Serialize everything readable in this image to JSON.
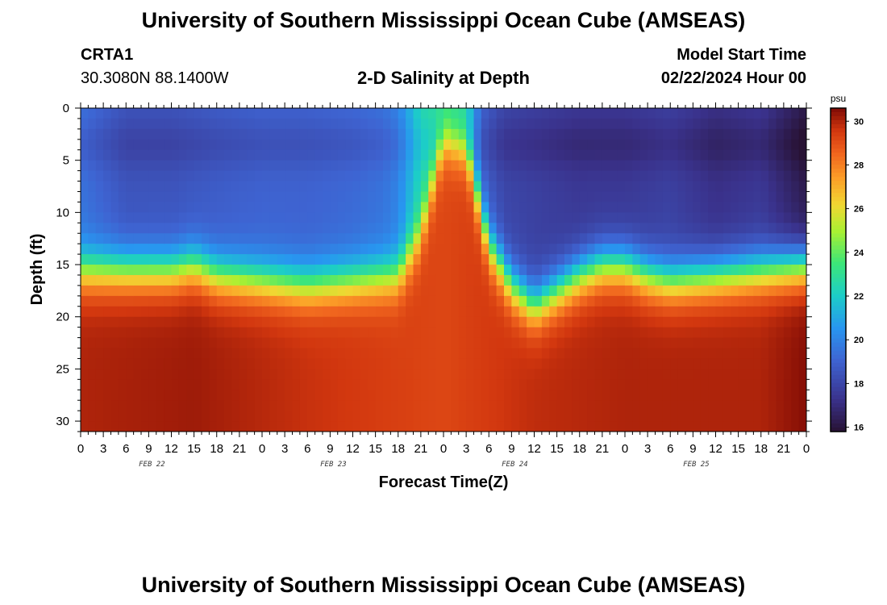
{
  "header": {
    "title": "University of Southern Mississippi Ocean Cube (AMSEAS)",
    "station_id": "CRTA1",
    "station_coords": "30.3080N  88.1400W",
    "subtitle": "2-D Salinity at Depth",
    "start_label": "Model Start Time",
    "start_value": "02/22/2024 Hour 00"
  },
  "footer": {
    "title": "University of Southern Mississippi Ocean Cube (AMSEAS)"
  },
  "chart_data": {
    "type": "heatmap",
    "title": "2-D Salinity at Depth",
    "xlabel": "Forecast Time(Z)",
    "ylabel": "Depth (ft)",
    "x_ticks": [
      "0",
      "3",
      "6",
      "9",
      "12",
      "15",
      "18",
      "21",
      "0",
      "3",
      "6",
      "9",
      "12",
      "15",
      "18",
      "21",
      "0",
      "3",
      "6",
      "9",
      "12",
      "15",
      "18",
      "21",
      "0",
      "3",
      "6",
      "9",
      "12",
      "15",
      "18",
      "21",
      "0"
    ],
    "x_hours_range": [
      0,
      96
    ],
    "date_labels": [
      {
        "text": "FEB 22",
        "hour": 9
      },
      {
        "text": "FEB 23",
        "hour": 33
      },
      {
        "text": "FEB 24",
        "hour": 57
      },
      {
        "text": "FEB 25",
        "hour": 81
      }
    ],
    "y_ticks": [
      0,
      5,
      10,
      15,
      20,
      25,
      30
    ],
    "y_range": [
      0,
      31
    ],
    "colorbar": {
      "unit": "psu",
      "ticks": [
        16,
        18,
        20,
        22,
        24,
        26,
        28,
        30
      ],
      "range": [
        15.8,
        30.6
      ]
    },
    "halocline_depth_ft": [
      [
        0,
        15.5
      ],
      [
        6,
        15.5
      ],
      [
        12,
        15.5
      ],
      [
        15,
        15.0
      ],
      [
        18,
        16.0
      ],
      [
        24,
        16.5
      ],
      [
        30,
        17.0
      ],
      [
        36,
        16.5
      ],
      [
        42,
        16.0
      ],
      [
        45,
        12.0
      ],
      [
        48,
        3.0
      ],
      [
        51,
        4.0
      ],
      [
        54,
        13.0
      ],
      [
        57,
        17.0
      ],
      [
        60,
        19.0
      ],
      [
        63,
        17.5
      ],
      [
        66,
        16.0
      ],
      [
        69,
        15.0
      ],
      [
        72,
        15.0
      ],
      [
        75,
        16.0
      ],
      [
        78,
        16.5
      ],
      [
        84,
        16.0
      ],
      [
        90,
        15.5
      ],
      [
        96,
        15.0
      ]
    ],
    "surface_salinity_psu": [
      [
        0,
        19.5
      ],
      [
        6,
        18.5
      ],
      [
        12,
        18.5
      ],
      [
        18,
        18.8
      ],
      [
        24,
        19.0
      ],
      [
        30,
        19.0
      ],
      [
        36,
        19.2
      ],
      [
        40,
        19.5
      ],
      [
        42,
        20.0
      ],
      [
        45,
        22.5
      ],
      [
        48,
        23.0
      ],
      [
        51,
        22.5
      ],
      [
        53,
        19.0
      ],
      [
        56,
        18.0
      ],
      [
        60,
        17.8
      ],
      [
        66,
        17.5
      ],
      [
        72,
        17.5
      ],
      [
        78,
        17.8
      ],
      [
        84,
        17.2
      ],
      [
        90,
        17.5
      ],
      [
        96,
        16.2
      ]
    ],
    "bottom_salinity_psu": [
      [
        0,
        30.0
      ],
      [
        15,
        30.2
      ],
      [
        30,
        29.7
      ],
      [
        48,
        29.2
      ],
      [
        60,
        29.8
      ],
      [
        72,
        30.0
      ],
      [
        84,
        30.0
      ],
      [
        90,
        30.0
      ],
      [
        96,
        30.5
      ]
    ]
  }
}
